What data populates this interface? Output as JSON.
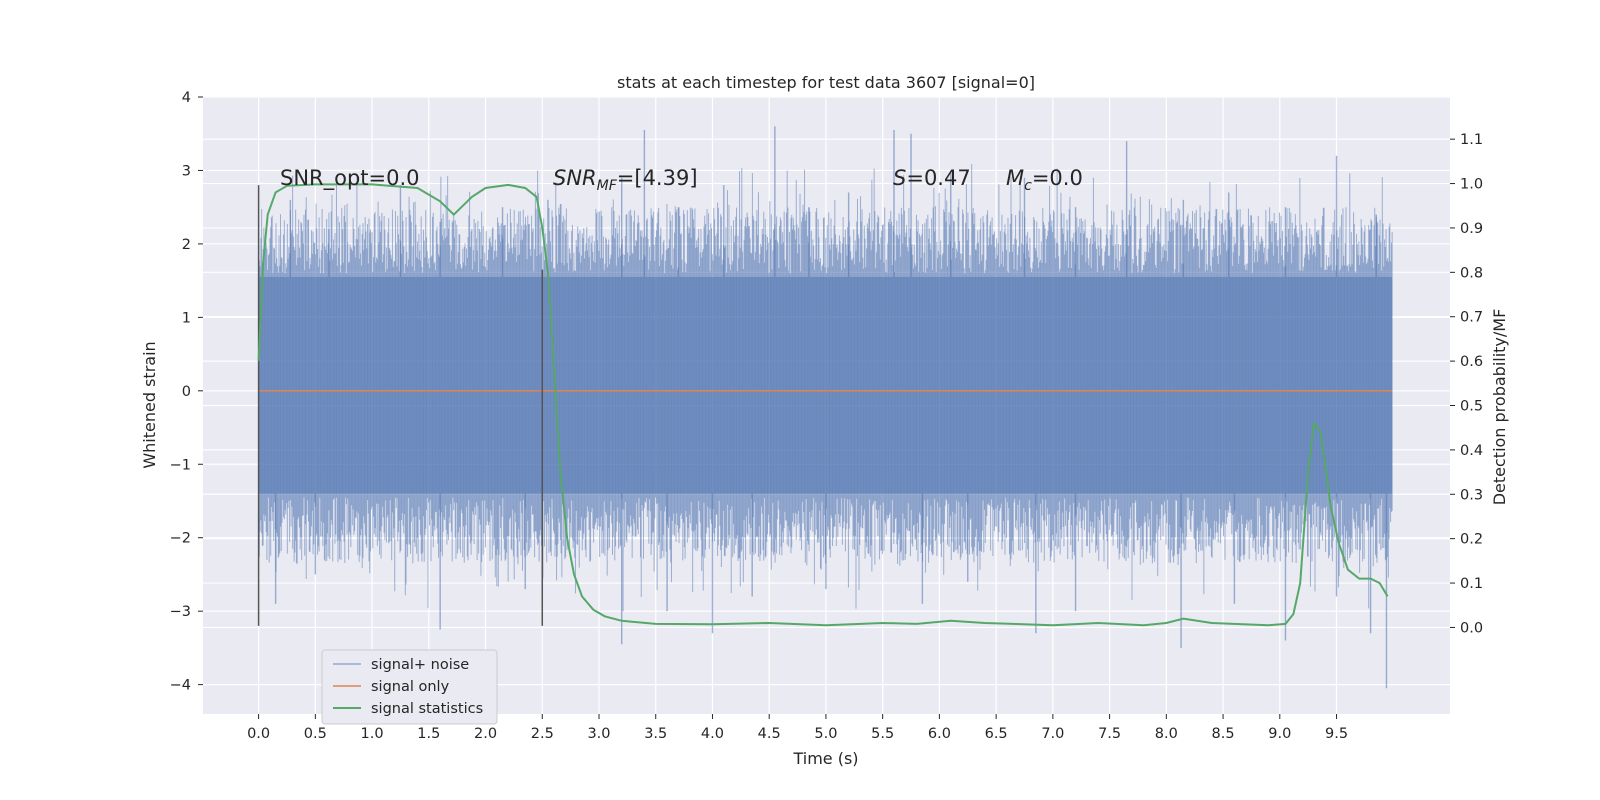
{
  "chart_data": {
    "type": "line",
    "title": "stats at each timestep for test data 3607 [signal=0]",
    "xlabel": "Time (s)",
    "ylabel_left": "Whitened strain",
    "ylabel_right": "Detection probability/MF",
    "xlim": [
      -0.49,
      10.5
    ],
    "ylim_left": [
      -4.4,
      4.0
    ],
    "ylim_right": [
      -0.195,
      1.195
    ],
    "x_ticks": [
      0.0,
      0.5,
      1.0,
      1.5,
      2.0,
      2.5,
      3.0,
      3.5,
      4.0,
      4.5,
      5.0,
      5.5,
      6.0,
      6.5,
      7.0,
      7.5,
      8.0,
      8.5,
      9.0,
      9.5
    ],
    "y_ticks_left": [
      -4,
      -3,
      -2,
      -1,
      0,
      1,
      2,
      3,
      4
    ],
    "y_ticks_right": [
      0.0,
      0.1,
      0.2,
      0.3,
      0.4,
      0.5,
      0.6,
      0.7,
      0.8,
      0.9,
      1.0,
      1.1
    ],
    "grid": true,
    "legend_position": "lower-left",
    "colors": {
      "background": "#eaeaf2",
      "grid": "#ffffff",
      "noise": "#4c72b0",
      "signal_only": "#dd8452",
      "statistics": "#55a868",
      "marker": "#555555"
    },
    "series": [
      {
        "name": "signal+ noise",
        "kind": "noise_band",
        "x_range": [
          0.0,
          9.99
        ],
        "core_band": [
          -1.4,
          1.55
        ],
        "positive_extremes": [
          [
            0.28,
            2.6
          ],
          [
            0.62,
            2.2
          ],
          [
            1.25,
            2.8
          ],
          [
            1.6,
            2.3
          ],
          [
            2.15,
            2.5
          ],
          [
            2.55,
            2.6
          ],
          [
            3.2,
            2.9
          ],
          [
            3.4,
            3.55
          ],
          [
            3.7,
            2.5
          ],
          [
            4.1,
            2.8
          ],
          [
            4.55,
            3.6
          ],
          [
            4.85,
            2.5
          ],
          [
            5.2,
            2.7
          ],
          [
            5.6,
            3.55
          ],
          [
            5.75,
            3.5
          ],
          [
            6.1,
            3.0
          ],
          [
            6.75,
            2.9
          ],
          [
            7.2,
            2.5
          ],
          [
            7.65,
            3.4
          ],
          [
            8.15,
            2.6
          ],
          [
            8.55,
            2.7
          ],
          [
            9.05,
            2.5
          ],
          [
            9.5,
            3.2
          ],
          [
            9.85,
            2.4
          ]
        ],
        "negative_extremes": [
          [
            0.15,
            -2.9
          ],
          [
            0.5,
            -2.5
          ],
          [
            1.6,
            -3.25
          ],
          [
            2.35,
            -2.7
          ],
          [
            3.2,
            -3.45
          ],
          [
            3.6,
            -3.0
          ],
          [
            4.0,
            -3.3
          ],
          [
            4.35,
            -2.8
          ],
          [
            5.0,
            -2.7
          ],
          [
            5.85,
            -2.9
          ],
          [
            6.25,
            -2.6
          ],
          [
            6.85,
            -3.3
          ],
          [
            7.2,
            -3.0
          ],
          [
            8.13,
            -3.5
          ],
          [
            8.6,
            -2.9
          ],
          [
            9.05,
            -3.4
          ],
          [
            9.5,
            -2.8
          ],
          [
            9.8,
            -3.3
          ],
          [
            9.94,
            -4.05
          ]
        ]
      },
      {
        "name": "signal only",
        "kind": "line",
        "x": [
          0.0,
          9.99
        ],
        "y": [
          0.0,
          0.0
        ]
      },
      {
        "name": "signal statistics",
        "kind": "line",
        "axis": "right",
        "x": [
          0.0,
          0.04,
          0.08,
          0.15,
          0.25,
          0.5,
          1.0,
          1.4,
          1.6,
          1.72,
          1.8,
          1.88,
          2.0,
          2.2,
          2.35,
          2.45,
          2.5,
          2.55,
          2.6,
          2.66,
          2.72,
          2.78,
          2.85,
          2.95,
          3.05,
          3.2,
          3.5,
          4.0,
          4.5,
          5.0,
          5.5,
          5.8,
          6.1,
          6.4,
          7.0,
          7.4,
          7.8,
          8.0,
          8.15,
          8.4,
          8.9,
          9.05,
          9.12,
          9.18,
          9.25,
          9.3,
          9.36,
          9.45,
          9.52,
          9.6,
          9.7,
          9.8,
          9.88,
          9.95
        ],
        "y": [
          0.6,
          0.82,
          0.93,
          0.98,
          0.995,
          0.998,
          0.998,
          0.99,
          0.96,
          0.93,
          0.95,
          0.97,
          0.99,
          0.997,
          0.99,
          0.97,
          0.9,
          0.8,
          0.6,
          0.35,
          0.2,
          0.12,
          0.07,
          0.04,
          0.025,
          0.015,
          0.008,
          0.007,
          0.01,
          0.005,
          0.01,
          0.008,
          0.015,
          0.01,
          0.005,
          0.01,
          0.005,
          0.01,
          0.02,
          0.01,
          0.005,
          0.008,
          0.03,
          0.1,
          0.35,
          0.46,
          0.44,
          0.27,
          0.19,
          0.13,
          0.11,
          0.11,
          0.1,
          0.07
        ]
      }
    ],
    "vertical_markers": [
      {
        "x": 0.0,
        "y_range": [
          -3.2,
          2.8
        ]
      },
      {
        "x": 2.5,
        "y_range": [
          -3.2,
          1.65
        ]
      }
    ],
    "annotations": {
      "snr_opt": "SNR_opt=0.0",
      "snr_mf_sym": "SNR",
      "snr_mf_sub": "MF",
      "snr_mf_val": "=[4.39]",
      "s_sym": "S",
      "s_val": "=0.47",
      "mc_sym": "M",
      "mc_sub": "c",
      "mc_val": "=0.0"
    }
  }
}
